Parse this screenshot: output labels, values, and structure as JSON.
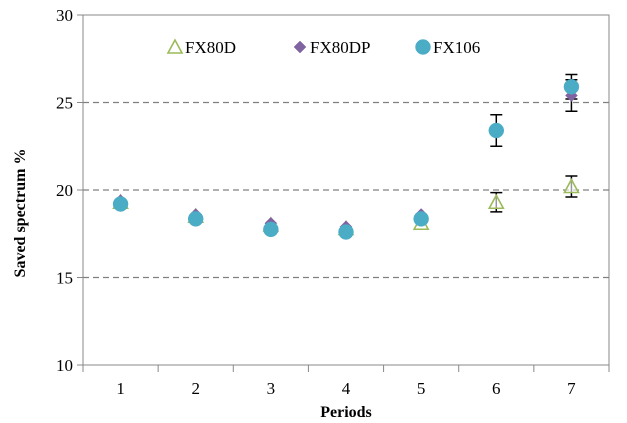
{
  "chart_data": {
    "type": "scatter",
    "xlabel": "Periods",
    "ylabel": "Saved spectrum %",
    "categories": [
      "1",
      "2",
      "3",
      "4",
      "5",
      "6",
      "7"
    ],
    "x": [
      1,
      2,
      3,
      4,
      5,
      6,
      7
    ],
    "xlim": [
      0.5,
      7.5
    ],
    "ylim": [
      10,
      30
    ],
    "yticks": [
      10,
      15,
      20,
      25,
      30
    ],
    "yticklabels": [
      "10",
      "15",
      "20",
      "25",
      "30"
    ],
    "gridlines_y": [
      15,
      20,
      25
    ],
    "grid": "horizontal dashed",
    "legend_position": "top",
    "series": [
      {
        "name": "FX80D",
        "marker": "open-triangle",
        "color": "#9BBB59",
        "values": [
          19.3,
          18.5,
          18.0,
          17.8,
          18.1,
          19.3,
          20.2
        ],
        "error": [
          null,
          null,
          null,
          null,
          null,
          0.55,
          0.6
        ]
      },
      {
        "name": "FX80DP",
        "marker": "diamond",
        "color": "#8064A2",
        "values": [
          19.4,
          18.6,
          18.1,
          17.9,
          18.6,
          23.4,
          25.4
        ],
        "error": [
          null,
          null,
          null,
          null,
          null,
          null,
          0.9
        ]
      },
      {
        "name": "FX106",
        "marker": "circle",
        "color": "#4BACC6",
        "values": [
          19.2,
          18.35,
          17.75,
          17.6,
          18.35,
          23.4,
          25.9
        ],
        "error": [
          null,
          null,
          null,
          null,
          null,
          0.9,
          0.7
        ]
      }
    ]
  }
}
